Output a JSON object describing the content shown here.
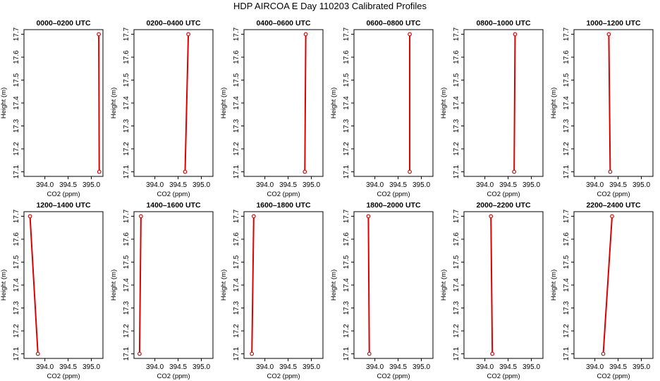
{
  "figure_title": "HDP AIRCOA E  Day 110203  Calibrated Profiles",
  "colors": {
    "profile": "#dd0000",
    "axis": "#000000",
    "background": "#ffffff"
  },
  "chart_data": [
    {
      "type": "line",
      "title": "0000–0200 UTC",
      "xlabel": "CO2 (ppm)",
      "ylabel": "Height (m)",
      "xlim": [
        393.55,
        395.25
      ],
      "ylim": [
        17.08,
        17.72
      ],
      "x_ticks": [
        "394.0",
        "394.5",
        "395.0"
      ],
      "y_ticks": [
        "17.1",
        "17.2",
        "17.3",
        "17.4",
        "17.5",
        "17.6",
        "17.7"
      ],
      "series": [
        {
          "x": [
            395.17,
            395.16
          ],
          "y": [
            17.1,
            17.7
          ]
        }
      ]
    },
    {
      "type": "line",
      "title": "0200–0400 UTC",
      "xlabel": "CO2 (ppm)",
      "ylabel": "Height (m)",
      "xlim": [
        393.55,
        395.25
      ],
      "ylim": [
        17.08,
        17.72
      ],
      "x_ticks": [
        "394.0",
        "394.5",
        "395.0"
      ],
      "y_ticks": [
        "17.1",
        "17.2",
        "17.3",
        "17.4",
        "17.5",
        "17.6",
        "17.7"
      ],
      "series": [
        {
          "x": [
            394.65,
            394.72
          ],
          "y": [
            17.1,
            17.7
          ]
        }
      ]
    },
    {
      "type": "line",
      "title": "0400–0600 UTC",
      "xlabel": "CO2 (ppm)",
      "ylabel": "Height (m)",
      "xlim": [
        393.55,
        395.25
      ],
      "ylim": [
        17.08,
        17.72
      ],
      "x_ticks": [
        "394.0",
        "394.5",
        "395.0"
      ],
      "y_ticks": [
        "17.1",
        "17.2",
        "17.3",
        "17.4",
        "17.5",
        "17.6",
        "17.7"
      ],
      "series": [
        {
          "x": [
            394.86,
            394.88
          ],
          "y": [
            17.1,
            17.7
          ]
        }
      ]
    },
    {
      "type": "line",
      "title": "0600–0800 UTC",
      "xlabel": "CO2 (ppm)",
      "ylabel": "Height (m)",
      "xlim": [
        393.55,
        395.25
      ],
      "ylim": [
        17.08,
        17.72
      ],
      "x_ticks": [
        "394.0",
        "394.5",
        "395.0"
      ],
      "y_ticks": [
        "17.1",
        "17.2",
        "17.3",
        "17.4",
        "17.5",
        "17.6",
        "17.7"
      ],
      "series": [
        {
          "x": [
            394.75,
            394.75
          ],
          "y": [
            17.1,
            17.7
          ]
        }
      ]
    },
    {
      "type": "line",
      "title": "0800–1000 UTC",
      "xlabel": "CO2 (ppm)",
      "ylabel": "Height (m)",
      "xlim": [
        393.55,
        395.25
      ],
      "ylim": [
        17.08,
        17.72
      ],
      "x_ticks": [
        "394.0",
        "394.5",
        "395.0"
      ],
      "y_ticks": [
        "17.1",
        "17.2",
        "17.3",
        "17.4",
        "17.5",
        "17.6",
        "17.7"
      ],
      "series": [
        {
          "x": [
            394.63,
            394.65
          ],
          "y": [
            17.1,
            17.7
          ]
        }
      ]
    },
    {
      "type": "line",
      "title": "1000–1200 UTC",
      "xlabel": "CO2 (ppm)",
      "ylabel": "Height (m)",
      "xlim": [
        393.55,
        395.25
      ],
      "ylim": [
        17.08,
        17.72
      ],
      "x_ticks": [
        "394.0",
        "394.5",
        "395.0"
      ],
      "y_ticks": [
        "17.1",
        "17.2",
        "17.3",
        "17.4",
        "17.5",
        "17.6",
        "17.7"
      ],
      "series": [
        {
          "x": [
            394.33,
            394.3
          ],
          "y": [
            17.1,
            17.7
          ]
        }
      ]
    },
    {
      "type": "line",
      "title": "1200–1400 UTC",
      "xlabel": "CO2 (ppm)",
      "ylabel": "Height (m)",
      "xlim": [
        393.55,
        395.25
      ],
      "ylim": [
        17.08,
        17.72
      ],
      "x_ticks": [
        "394.0",
        "394.5",
        "395.0"
      ],
      "y_ticks": [
        "17.1",
        "17.2",
        "17.3",
        "17.4",
        "17.5",
        "17.6",
        "17.7"
      ],
      "series": [
        {
          "x": [
            393.85,
            393.68
          ],
          "y": [
            17.1,
            17.7
          ]
        }
      ]
    },
    {
      "type": "line",
      "title": "1400–1600 UTC",
      "xlabel": "CO2 (ppm)",
      "ylabel": "Height (m)",
      "xlim": [
        393.55,
        395.25
      ],
      "ylim": [
        17.08,
        17.72
      ],
      "x_ticks": [
        "394.0",
        "394.5",
        "395.0"
      ],
      "y_ticks": [
        "17.1",
        "17.2",
        "17.3",
        "17.4",
        "17.5",
        "17.6",
        "17.7"
      ],
      "series": [
        {
          "x": [
            393.67,
            393.7
          ],
          "y": [
            17.1,
            17.7
          ]
        }
      ]
    },
    {
      "type": "line",
      "title": "1600–1800 UTC",
      "xlabel": "CO2 (ppm)",
      "ylabel": "Height (m)",
      "xlim": [
        393.55,
        395.25
      ],
      "ylim": [
        17.08,
        17.72
      ],
      "x_ticks": [
        "394.0",
        "394.5",
        "395.0"
      ],
      "y_ticks": [
        "17.1",
        "17.2",
        "17.3",
        "17.4",
        "17.5",
        "17.6",
        "17.7"
      ],
      "series": [
        {
          "x": [
            393.72,
            393.76
          ],
          "y": [
            17.1,
            17.7
          ]
        }
      ]
    },
    {
      "type": "line",
      "title": "1800–2000 UTC",
      "xlabel": "CO2 (ppm)",
      "ylabel": "Height (m)",
      "xlim": [
        393.55,
        395.25
      ],
      "ylim": [
        17.08,
        17.72
      ],
      "x_ticks": [
        "394.0",
        "394.5",
        "395.0"
      ],
      "y_ticks": [
        "17.1",
        "17.2",
        "17.3",
        "17.4",
        "17.5",
        "17.6",
        "17.7"
      ],
      "series": [
        {
          "x": [
            393.88,
            393.86
          ],
          "y": [
            17.1,
            17.7
          ]
        }
      ]
    },
    {
      "type": "line",
      "title": "2000–2200 UTC",
      "xlabel": "CO2 (ppm)",
      "ylabel": "Height (m)",
      "xlim": [
        393.55,
        395.25
      ],
      "ylim": [
        17.08,
        17.72
      ],
      "x_ticks": [
        "394.0",
        "394.5",
        "395.0"
      ],
      "y_ticks": [
        "17.1",
        "17.2",
        "17.3",
        "17.4",
        "17.5",
        "17.6",
        "17.7"
      ],
      "series": [
        {
          "x": [
            394.16,
            394.13
          ],
          "y": [
            17.1,
            17.7
          ]
        }
      ]
    },
    {
      "type": "line",
      "title": "2200–2400 UTC",
      "xlabel": "CO2 (ppm)",
      "ylabel": "Height (m)",
      "xlim": [
        393.55,
        395.25
      ],
      "ylim": [
        17.08,
        17.72
      ],
      "x_ticks": [
        "394.0",
        "394.5",
        "395.0"
      ],
      "y_ticks": [
        "17.1",
        "17.2",
        "17.3",
        "17.4",
        "17.5",
        "17.6",
        "17.7"
      ],
      "series": [
        {
          "x": [
            394.18,
            394.37
          ],
          "y": [
            17.1,
            17.7
          ]
        }
      ]
    }
  ]
}
